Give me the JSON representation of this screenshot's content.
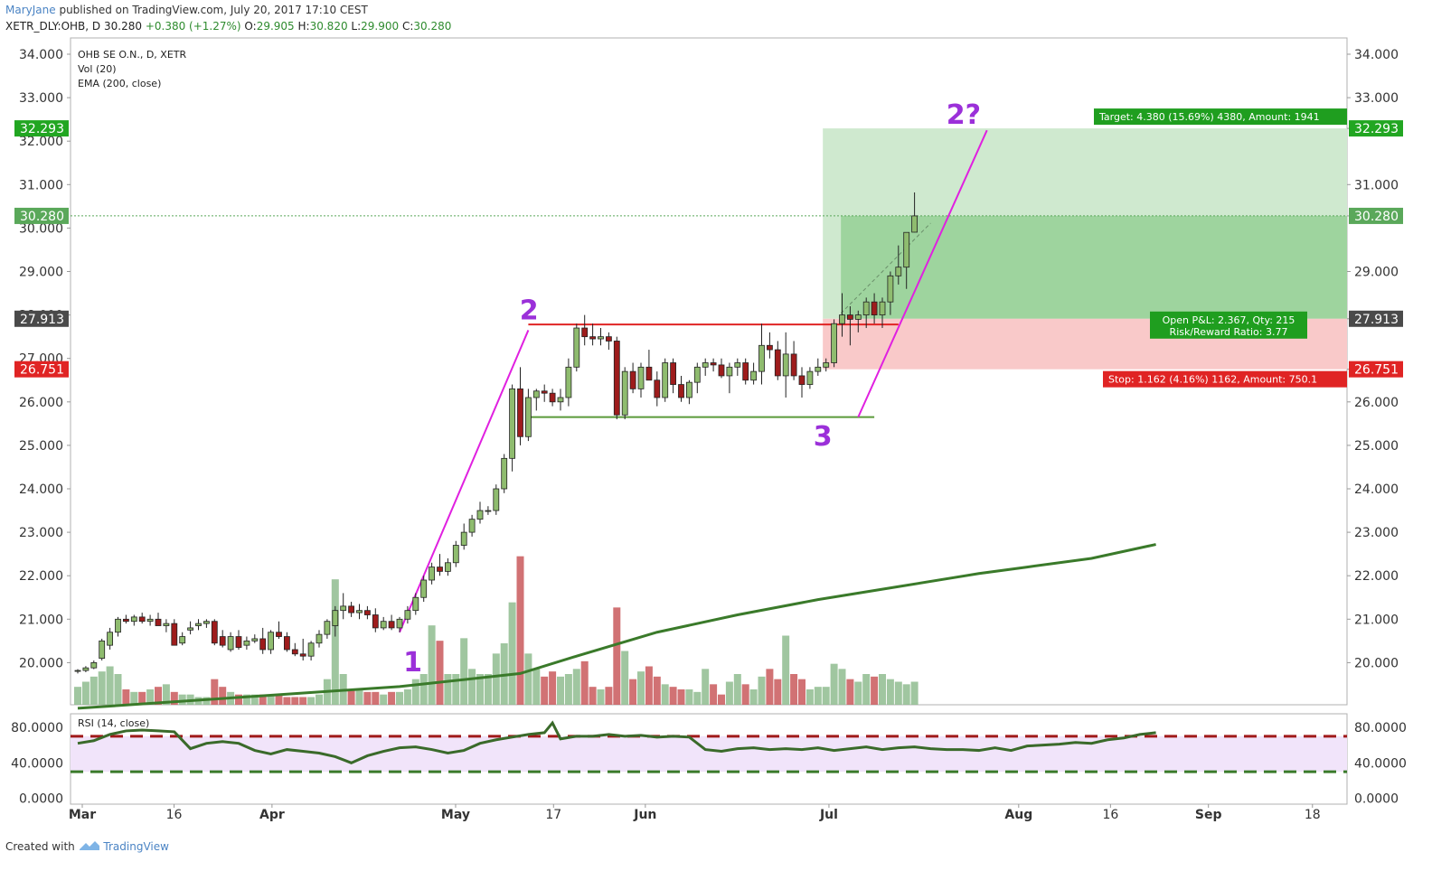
{
  "header": {
    "publisher_user": "MaryJane",
    "publisher_text": "published on TradingView.com, July 20, 2017 17:10 CEST",
    "symbol_line": "XETR_DLY:OHB, D",
    "last_price": "30.280",
    "change": "+0.380 (+1.27%)",
    "o_label": "O:",
    "o_value": "29.905",
    "h_label": "H:",
    "h_value": "30.820",
    "l_label": "L:",
    "l_value": "29.900",
    "c_label": "C:",
    "c_value": "30.280"
  },
  "legend": {
    "symbol": "OHB SE  O.N., D, XETR",
    "vol": "Vol (20)",
    "ema": "EMA (200, close)"
  },
  "footer": {
    "created_with": "Created with",
    "brand": "TradingView"
  },
  "chart_data": {
    "type": "candlestick",
    "y_ticks": [
      "34.000",
      "33.000",
      "32.000",
      "31.000",
      "30.000",
      "29.000",
      "28.000",
      "27.000",
      "26.000",
      "25.000",
      "24.000",
      "23.000",
      "22.000",
      "21.000",
      "20.000"
    ],
    "ylim": [
      19.0,
      34.5
    ],
    "x_tick_labels": [
      {
        "label": "Mar",
        "day": 0,
        "bold": true
      },
      {
        "label": "16",
        "day": 15,
        "bold": false
      },
      {
        "label": "Apr",
        "day": 31,
        "bold": true
      },
      {
        "label": "May",
        "day": 61,
        "bold": true
      },
      {
        "label": "17",
        "day": 77,
        "bold": false
      },
      {
        "label": "Jun",
        "day": 92,
        "bold": true
      },
      {
        "label": "Jul",
        "day": 122,
        "bold": true
      },
      {
        "label": "Aug",
        "day": 153,
        "bold": true
      },
      {
        "label": "16",
        "day": 168,
        "bold": false
      },
      {
        "label": "Sep",
        "day": 184,
        "bold": true
      },
      {
        "label": "18",
        "day": 201,
        "bold": false
      }
    ],
    "candles": [
      [
        19.8,
        19.85,
        19.75,
        19.82,
        7
      ],
      [
        19.82,
        19.92,
        19.78,
        19.88,
        9
      ],
      [
        19.88,
        20.05,
        19.85,
        20.0,
        11
      ],
      [
        20.1,
        20.55,
        20.05,
        20.5,
        13
      ],
      [
        20.4,
        20.8,
        20.3,
        20.7,
        15
      ],
      [
        20.7,
        21.05,
        20.6,
        21.0,
        12
      ],
      [
        21.0,
        21.1,
        20.9,
        20.95,
        6
      ],
      [
        20.95,
        21.1,
        20.85,
        21.05,
        5
      ],
      [
        21.05,
        21.15,
        20.9,
        20.95,
        5
      ],
      [
        20.95,
        21.1,
        20.85,
        21.0,
        6
      ],
      [
        21.0,
        21.15,
        20.9,
        20.85,
        7
      ],
      [
        20.85,
        21.0,
        20.7,
        20.9,
        8
      ],
      [
        20.9,
        21.0,
        20.4,
        20.4,
        5
      ],
      [
        20.45,
        20.7,
        20.4,
        20.6,
        4
      ],
      [
        20.75,
        20.95,
        20.65,
        20.8,
        4
      ],
      [
        20.85,
        21.0,
        20.75,
        20.9,
        3
      ],
      [
        20.9,
        21.0,
        20.8,
        20.95,
        3
      ],
      [
        20.95,
        21.0,
        20.4,
        20.45,
        10
      ],
      [
        20.6,
        20.75,
        20.35,
        20.4,
        7
      ],
      [
        20.3,
        20.7,
        20.25,
        20.6,
        5
      ],
      [
        20.6,
        20.75,
        20.3,
        20.35,
        4
      ],
      [
        20.4,
        20.6,
        20.3,
        20.5,
        4
      ],
      [
        20.5,
        20.65,
        20.45,
        20.55,
        4
      ],
      [
        20.55,
        20.8,
        20.2,
        20.3,
        4
      ],
      [
        20.3,
        20.75,
        20.2,
        20.7,
        4
      ],
      [
        20.7,
        20.95,
        20.55,
        20.6,
        4
      ],
      [
        20.6,
        20.7,
        20.25,
        20.3,
        3
      ],
      [
        20.3,
        20.45,
        20.15,
        20.2,
        3
      ],
      [
        20.2,
        20.55,
        20.05,
        20.15,
        3
      ],
      [
        20.15,
        20.5,
        20.05,
        20.45,
        3
      ],
      [
        20.45,
        20.75,
        20.35,
        20.65,
        4
      ],
      [
        20.65,
        21.0,
        20.55,
        20.95,
        10
      ],
      [
        20.85,
        21.3,
        20.6,
        21.2,
        49
      ],
      [
        21.2,
        21.6,
        21.0,
        21.3,
        12
      ],
      [
        21.3,
        21.4,
        21.05,
        21.15,
        6
      ],
      [
        21.15,
        21.35,
        21.0,
        21.2,
        6
      ],
      [
        21.2,
        21.3,
        21.0,
        21.1,
        5
      ],
      [
        21.1,
        21.25,
        20.7,
        20.8,
        5
      ],
      [
        20.8,
        21.05,
        20.75,
        20.95,
        4
      ],
      [
        20.95,
        21.1,
        20.75,
        20.8,
        5
      ],
      [
        20.8,
        21.05,
        20.7,
        21.0,
        5
      ],
      [
        21.0,
        21.3,
        20.9,
        21.2,
        6
      ],
      [
        21.2,
        21.6,
        21.1,
        21.5,
        10
      ],
      [
        21.5,
        22.0,
        21.4,
        21.9,
        12
      ],
      [
        21.9,
        22.3,
        21.8,
        22.2,
        31
      ],
      [
        22.2,
        22.5,
        22.0,
        22.1,
        25
      ],
      [
        22.1,
        22.4,
        22.0,
        22.3,
        12
      ],
      [
        22.3,
        22.8,
        22.2,
        22.7,
        12
      ],
      [
        22.7,
        23.2,
        22.6,
        23.0,
        26
      ],
      [
        23.0,
        23.4,
        22.9,
        23.3,
        14
      ],
      [
        23.3,
        23.7,
        23.2,
        23.5,
        12
      ],
      [
        23.5,
        23.6,
        23.4,
        23.5,
        12
      ],
      [
        23.5,
        24.1,
        23.4,
        24.0,
        20
      ],
      [
        24.0,
        24.8,
        23.9,
        24.7,
        24
      ],
      [
        24.7,
        26.4,
        24.4,
        26.3,
        40
      ],
      [
        26.3,
        26.8,
        25.0,
        25.2,
        58
      ],
      [
        25.2,
        26.3,
        25.1,
        26.1,
        20
      ],
      [
        26.1,
        26.3,
        25.8,
        26.25,
        14
      ],
      [
        26.25,
        26.4,
        26.0,
        26.2,
        11
      ],
      [
        26.2,
        26.3,
        25.9,
        26.0,
        13
      ],
      [
        26.0,
        26.3,
        25.8,
        26.1,
        11
      ],
      [
        26.1,
        27.0,
        25.9,
        26.8,
        12
      ],
      [
        26.8,
        27.8,
        26.7,
        27.7,
        14
      ],
      [
        27.7,
        28.0,
        27.3,
        27.5,
        17
      ],
      [
        27.5,
        27.8,
        27.3,
        27.45,
        7
      ],
      [
        27.45,
        27.7,
        27.3,
        27.5,
        6
      ],
      [
        27.5,
        27.6,
        27.2,
        27.4,
        7
      ],
      [
        27.4,
        27.5,
        25.6,
        25.7,
        38
      ],
      [
        25.7,
        26.8,
        25.6,
        26.7,
        21
      ],
      [
        26.7,
        26.9,
        26.2,
        26.3,
        10
      ],
      [
        26.3,
        26.9,
        26.1,
        26.8,
        13
      ],
      [
        26.8,
        27.2,
        26.6,
        26.5,
        15
      ],
      [
        26.5,
        26.7,
        25.9,
        26.1,
        11
      ],
      [
        26.1,
        27.0,
        26.0,
        26.9,
        8
      ],
      [
        26.9,
        27.0,
        26.2,
        26.4,
        7
      ],
      [
        26.4,
        26.6,
        26.0,
        26.1,
        6
      ],
      [
        26.1,
        26.5,
        25.95,
        26.45,
        6
      ],
      [
        26.45,
        26.9,
        26.2,
        26.8,
        5
      ],
      [
        26.8,
        27.0,
        26.6,
        26.9,
        14
      ],
      [
        26.9,
        27.0,
        26.7,
        26.85,
        8
      ],
      [
        26.85,
        27.0,
        26.55,
        26.6,
        4
      ],
      [
        26.6,
        26.9,
        26.2,
        26.8,
        9
      ],
      [
        26.8,
        27.0,
        26.6,
        26.9,
        12
      ],
      [
        26.9,
        27.0,
        26.4,
        26.5,
        8
      ],
      [
        26.5,
        26.9,
        26.4,
        26.7,
        6
      ],
      [
        26.7,
        27.8,
        26.4,
        27.3,
        11
      ],
      [
        27.3,
        27.6,
        27.0,
        27.2,
        14
      ],
      [
        27.2,
        27.4,
        26.5,
        26.6,
        10
      ],
      [
        26.6,
        27.6,
        26.1,
        27.1,
        27
      ],
      [
        27.1,
        27.4,
        26.5,
        26.6,
        12
      ],
      [
        26.6,
        26.8,
        26.1,
        26.4,
        10
      ],
      [
        26.4,
        26.8,
        26.3,
        26.7,
        6
      ],
      [
        26.7,
        27.0,
        26.6,
        26.8,
        7
      ],
      [
        26.8,
        27.0,
        26.7,
        26.9,
        7
      ],
      [
        26.9,
        27.9,
        26.8,
        27.8,
        16
      ],
      [
        27.8,
        28.5,
        27.5,
        28.0,
        14
      ],
      [
        28.0,
        28.2,
        27.3,
        27.9,
        10
      ],
      [
        27.9,
        28.1,
        27.6,
        28.0,
        9
      ],
      [
        28.0,
        28.4,
        27.7,
        28.3,
        12
      ],
      [
        28.3,
        28.5,
        27.8,
        28.0,
        11
      ],
      [
        28.0,
        28.4,
        27.7,
        28.3,
        12
      ],
      [
        28.3,
        29.0,
        28.0,
        28.9,
        10
      ],
      [
        28.9,
        29.6,
        28.7,
        29.1,
        9
      ],
      [
        29.1,
        29.9,
        28.6,
        29.9,
        8
      ],
      [
        29.905,
        30.82,
        29.9,
        30.28,
        9
      ]
    ],
    "ema": [
      [
        0,
        18.95
      ],
      [
        20,
        19.2
      ],
      [
        40,
        19.45
      ],
      [
        55,
        19.75
      ],
      [
        62,
        20.15
      ],
      [
        72,
        20.7
      ],
      [
        82,
        21.1
      ],
      [
        92,
        21.45
      ],
      [
        102,
        21.75
      ],
      [
        112,
        22.05
      ],
      [
        118,
        22.2
      ],
      [
        126,
        22.4
      ],
      [
        134,
        22.72
      ]
    ],
    "rsi_ticks": [
      "80.0000",
      "40.0000",
      "0.0000"
    ],
    "rsi_band": [
      30,
      70
    ],
    "rsi": [
      [
        0,
        62
      ],
      [
        2,
        65
      ],
      [
        4,
        72
      ],
      [
        6,
        76
      ],
      [
        8,
        77
      ],
      [
        10,
        76
      ],
      [
        12,
        75
      ],
      [
        14,
        56
      ],
      [
        16,
        62
      ],
      [
        18,
        64
      ],
      [
        20,
        62
      ],
      [
        22,
        54
      ],
      [
        24,
        50
      ],
      [
        26,
        55
      ],
      [
        28,
        53
      ],
      [
        30,
        51
      ],
      [
        32,
        47
      ],
      [
        34,
        40
      ],
      [
        36,
        48
      ],
      [
        38,
        53
      ],
      [
        40,
        57
      ],
      [
        42,
        58
      ],
      [
        44,
        55
      ],
      [
        46,
        51
      ],
      [
        48,
        54
      ],
      [
        50,
        62
      ],
      [
        52,
        66
      ],
      [
        54,
        69
      ],
      [
        56,
        72
      ],
      [
        58,
        74
      ],
      [
        59,
        85
      ],
      [
        60,
        67
      ],
      [
        62,
        70
      ],
      [
        64,
        70
      ],
      [
        66,
        72
      ],
      [
        68,
        70
      ],
      [
        70,
        71
      ],
      [
        72,
        69
      ],
      [
        74,
        70
      ],
      [
        76,
        69
      ],
      [
        78,
        55
      ],
      [
        80,
        53
      ],
      [
        82,
        56
      ],
      [
        84,
        57
      ],
      [
        86,
        55
      ],
      [
        88,
        56
      ],
      [
        90,
        55
      ],
      [
        92,
        57
      ],
      [
        94,
        54
      ],
      [
        96,
        56
      ],
      [
        98,
        58
      ],
      [
        100,
        55
      ],
      [
        102,
        57
      ],
      [
        104,
        58
      ],
      [
        106,
        56
      ],
      [
        108,
        55
      ],
      [
        110,
        55
      ],
      [
        112,
        54
      ],
      [
        114,
        57
      ],
      [
        116,
        54
      ],
      [
        118,
        59
      ],
      [
        120,
        60
      ],
      [
        122,
        61
      ],
      [
        124,
        63
      ],
      [
        126,
        62
      ],
      [
        128,
        66
      ],
      [
        130,
        68
      ],
      [
        132,
        72
      ],
      [
        134,
        74
      ]
    ],
    "labels": [
      {
        "text": "1",
        "day": 54,
        "price": 19.8,
        "color": "#9b30d9"
      },
      {
        "text": "2",
        "day": 73,
        "price": 27.9,
        "color": "#9b30d9"
      },
      {
        "text": "3",
        "day": 121,
        "price": 25.0,
        "color": "#9b30d9"
      },
      {
        "text": "2?",
        "day": 144,
        "price": 32.4,
        "color": "#9b30d9"
      }
    ],
    "price_tags_right": [
      {
        "text": "34.000"
      },
      {
        "text": "33.000"
      },
      {
        "text": "32.293",
        "bg": "#22a622"
      },
      {
        "text": "31.000"
      },
      {
        "text": "30.280",
        "bg": "#5aa85a"
      },
      {
        "text": "29.000"
      },
      {
        "text": "27.913",
        "bg": "#4a4a4a"
      },
      {
        "text": "26.751",
        "bg": "#e02424"
      },
      {
        "text": "26.000"
      },
      {
        "text": "25.000"
      },
      {
        "text": "24.000"
      },
      {
        "text": "23.000"
      },
      {
        "text": "22.000"
      },
      {
        "text": "21.000"
      },
      {
        "text": "20.000"
      }
    ],
    "position": {
      "entry": 27.913,
      "target": 32.293,
      "stop": 26.751,
      "target_label": "Target: 4.380 (15.69%) 4380, Amount: 1941",
      "open_pl_label": "Open P&L: 2.367, Qty: 215",
      "rr_label": "Risk/Reward Ratio: 3.77",
      "stop_label": "Stop: 1.162 (4.16%) 1162, Amount: 750.1"
    },
    "current_price": 30.28,
    "resistance_level": 27.78,
    "support_level": 25.65,
    "rsi_title": "RSI (14, close)"
  }
}
